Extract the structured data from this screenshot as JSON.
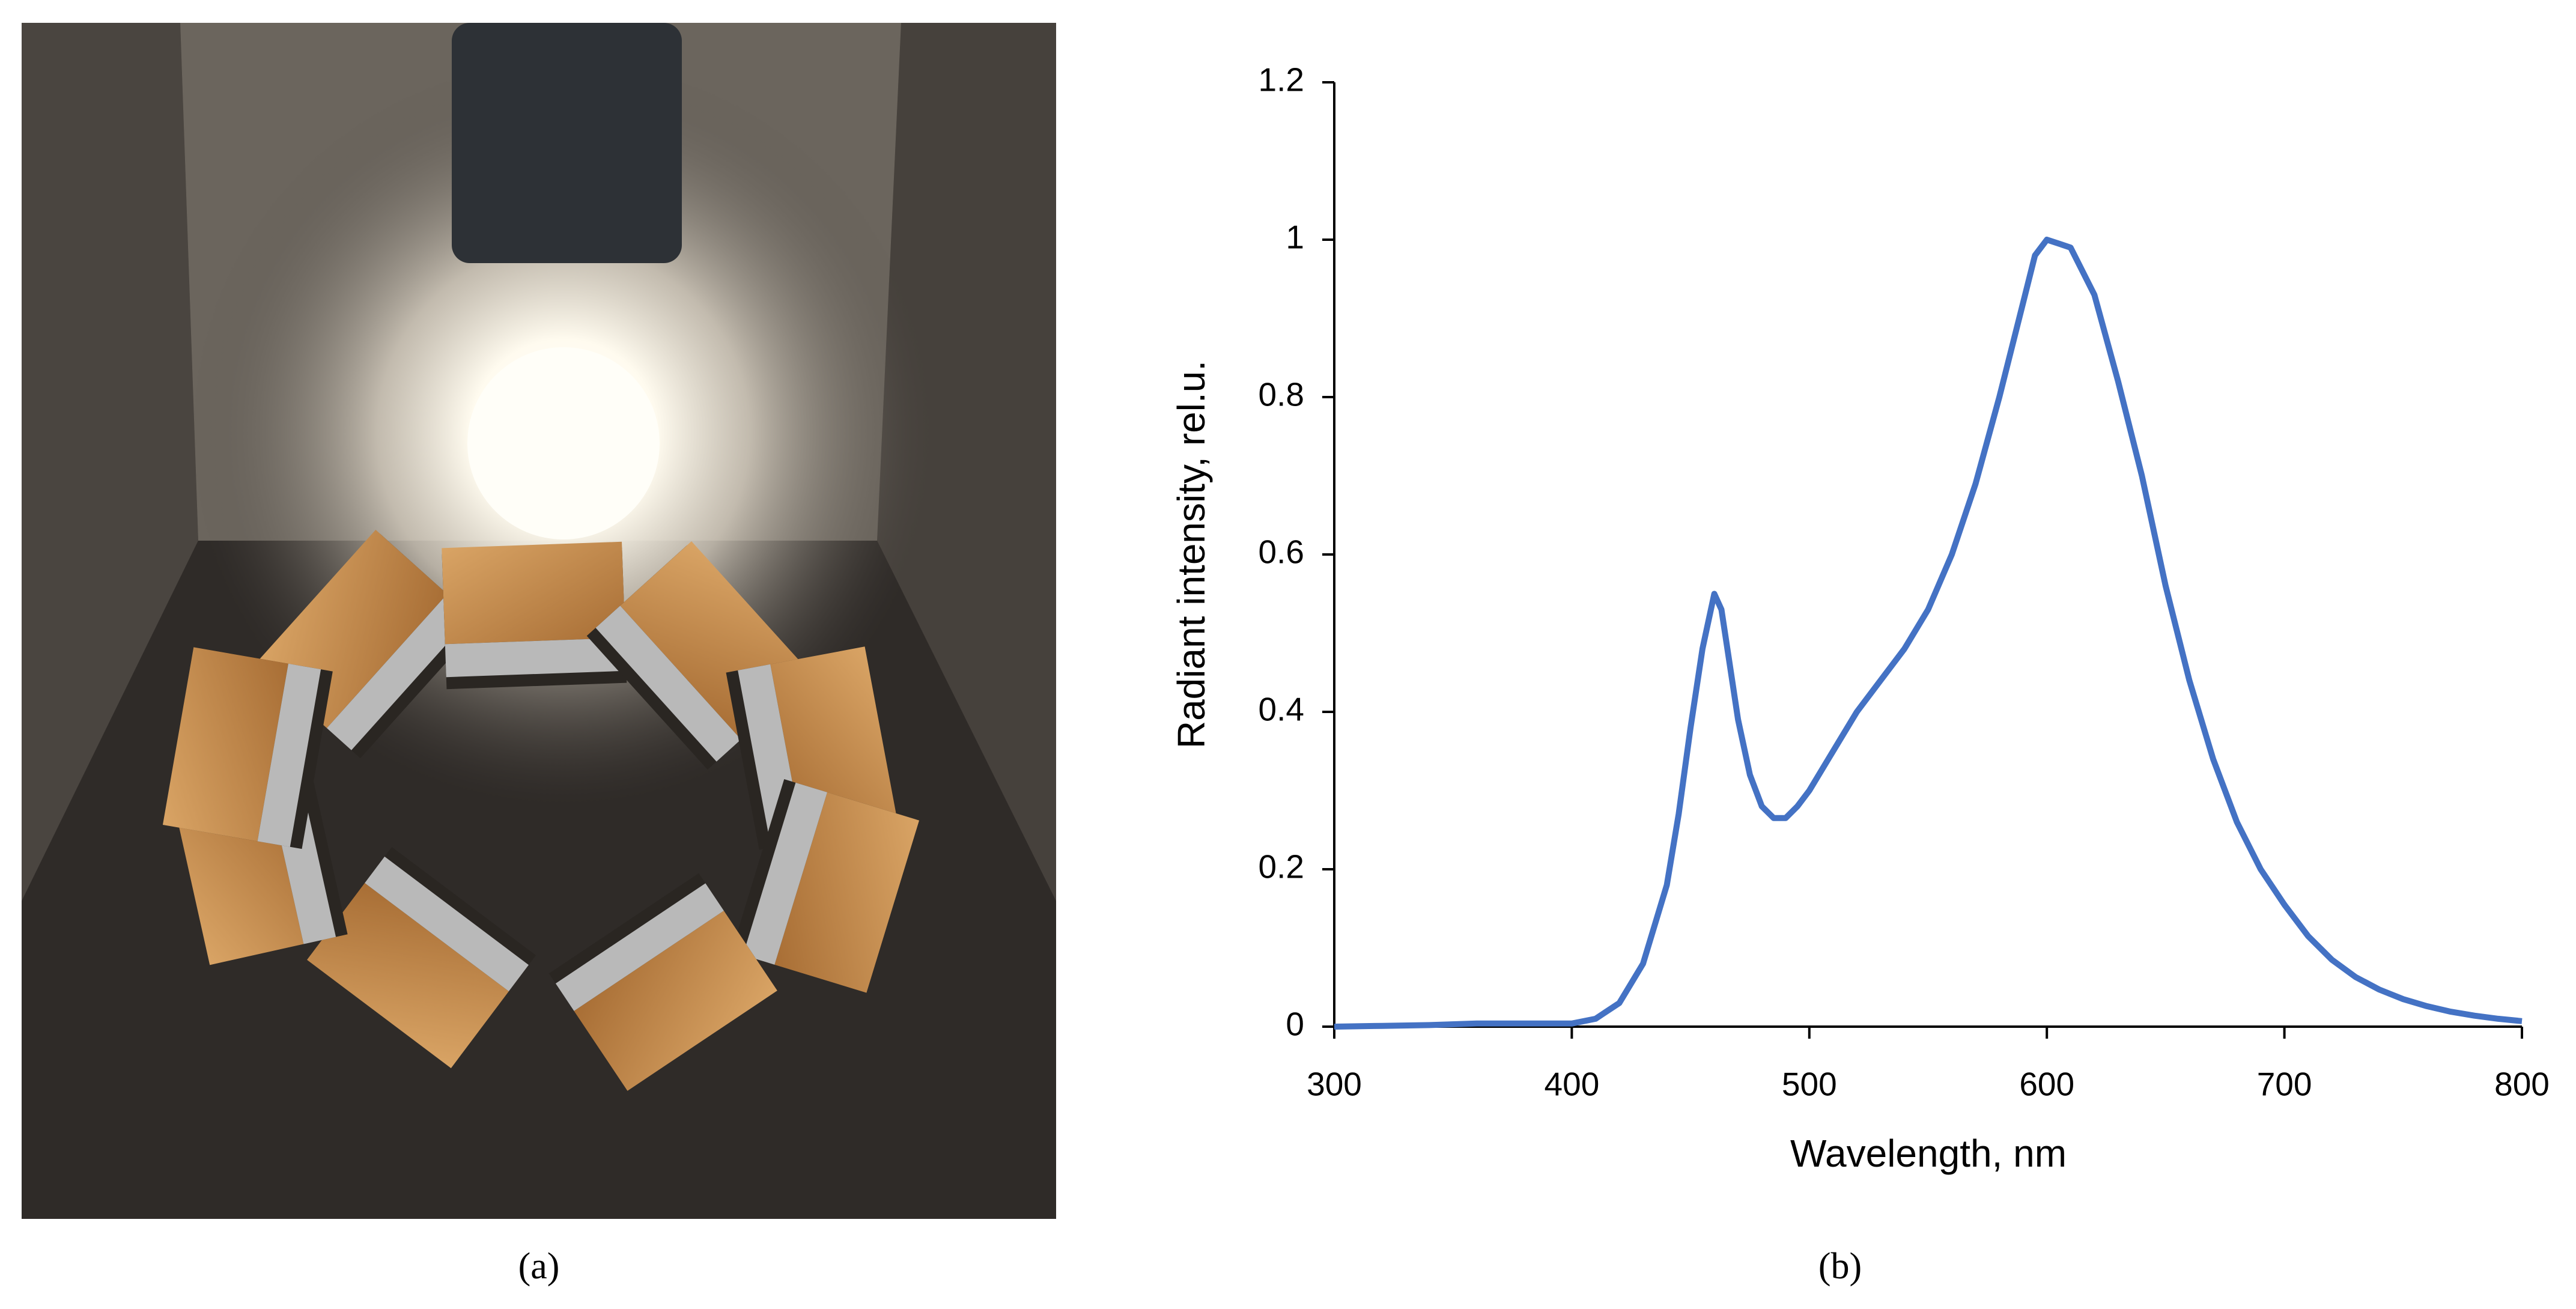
{
  "captions": [
    "(a)",
    "(b)"
  ],
  "chart_data": {
    "type": "line",
    "x_label": "Wavelength, nm",
    "y_label": "Radiant intensity, rel.u.",
    "x": [
      300,
      320,
      340,
      360,
      380,
      400,
      410,
      420,
      430,
      440,
      445,
      450,
      455,
      460,
      463,
      466,
      470,
      475,
      480,
      485,
      490,
      495,
      500,
      510,
      520,
      530,
      540,
      550,
      560,
      570,
      580,
      590,
      595,
      600,
      605,
      610,
      620,
      630,
      640,
      650,
      660,
      670,
      680,
      690,
      700,
      710,
      720,
      730,
      740,
      750,
      760,
      770,
      780,
      790,
      800
    ],
    "values": [
      0,
      0.001,
      0.002,
      0.004,
      0.004,
      0.004,
      0.01,
      0.03,
      0.08,
      0.18,
      0.27,
      0.38,
      0.48,
      0.55,
      0.53,
      0.47,
      0.39,
      0.32,
      0.28,
      0.265,
      0.265,
      0.28,
      0.3,
      0.35,
      0.4,
      0.44,
      0.48,
      0.53,
      0.6,
      0.69,
      0.8,
      0.92,
      0.98,
      1.0,
      0.995,
      0.99,
      0.93,
      0.82,
      0.7,
      0.56,
      0.44,
      0.34,
      0.26,
      0.2,
      0.155,
      0.115,
      0.085,
      0.063,
      0.047,
      0.035,
      0.026,
      0.019,
      0.014,
      0.01,
      0.007
    ],
    "color": "#4472c4",
    "xlim": [
      300,
      800
    ],
    "xticks": [
      300,
      400,
      500,
      600,
      700,
      800
    ],
    "ylim": [
      0,
      1.2
    ],
    "yticks": [
      0,
      0.2,
      0.4,
      0.6,
      0.8,
      1,
      1.2
    ],
    "grid": false
  }
}
